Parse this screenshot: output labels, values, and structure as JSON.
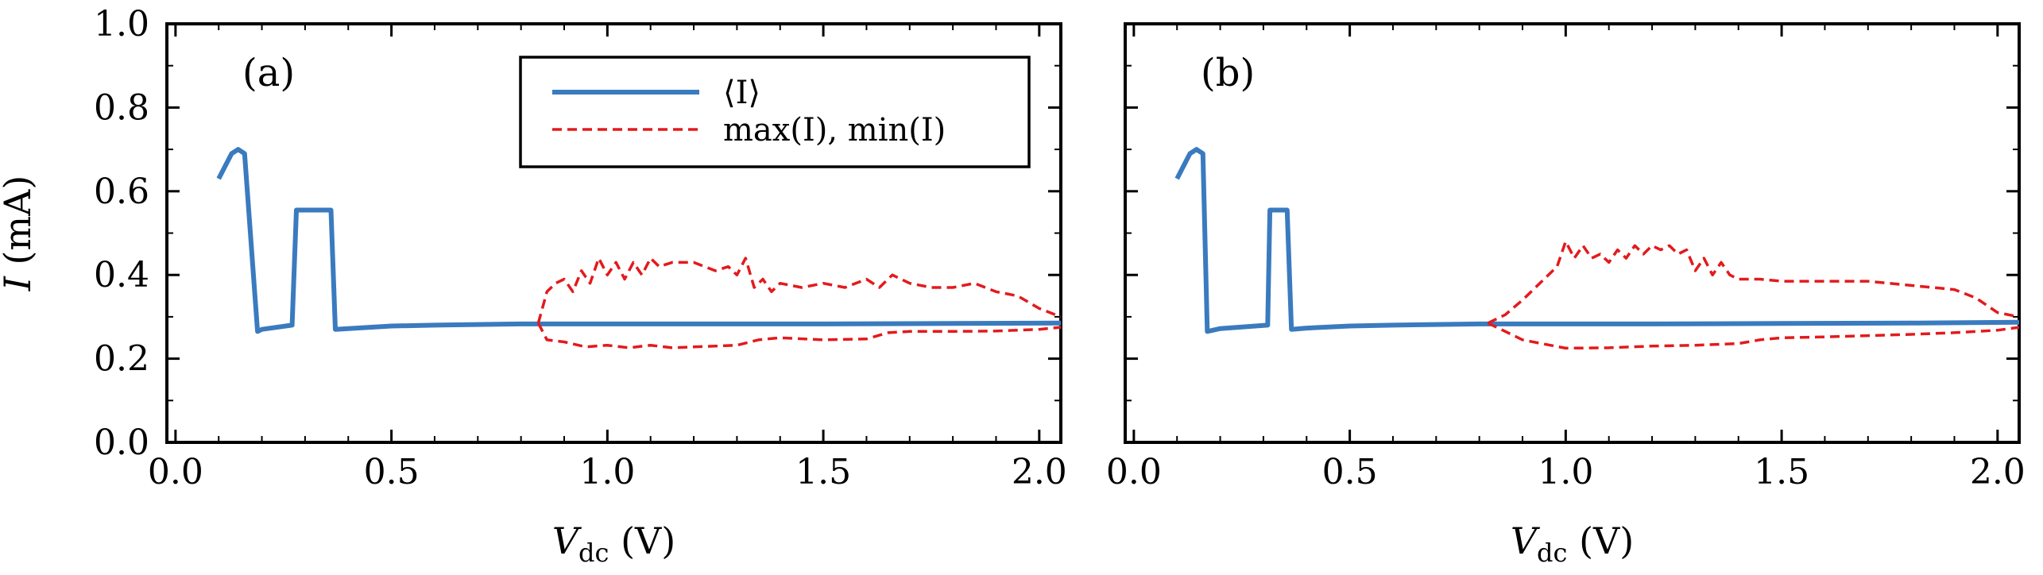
{
  "chart_data": [
    {
      "type": "line",
      "panel_label": "(a)",
      "xlabel": "V_dc (V)",
      "ylabel": "I (mA)",
      "xlim": [
        -0.02,
        2.05
      ],
      "ylim": [
        0.0,
        1.0
      ],
      "xticks": [
        "0.0",
        "0.5",
        "1.0",
        "1.5",
        "2.0"
      ],
      "yticks": [
        "0.0",
        "0.2",
        "0.4",
        "0.6",
        "0.8",
        "1.0"
      ],
      "legend": {
        "position": "top-center",
        "entries": [
          "⟨I⟩",
          "max(I), min(I)"
        ]
      },
      "series": [
        {
          "name": "⟨I⟩",
          "color": "#3a7bbf",
          "style": "solid",
          "x": [
            0.1,
            0.13,
            0.145,
            0.16,
            0.19,
            0.2,
            0.27,
            0.28,
            0.36,
            0.37,
            0.4,
            0.5,
            0.6,
            0.8,
            1.0,
            1.2,
            1.5,
            1.8,
            2.05
          ],
          "y": [
            0.63,
            0.69,
            0.7,
            0.69,
            0.265,
            0.27,
            0.28,
            0.555,
            0.555,
            0.27,
            0.272,
            0.278,
            0.28,
            0.283,
            0.283,
            0.283,
            0.283,
            0.284,
            0.285
          ]
        },
        {
          "name": "max(I)",
          "color": "#e31a1c",
          "style": "dashed",
          "x": [
            0.84,
            0.86,
            0.88,
            0.9,
            0.92,
            0.94,
            0.96,
            0.98,
            1.0,
            1.02,
            1.04,
            1.06,
            1.08,
            1.1,
            1.12,
            1.15,
            1.2,
            1.25,
            1.28,
            1.3,
            1.32,
            1.34,
            1.36,
            1.38,
            1.4,
            1.45,
            1.5,
            1.55,
            1.6,
            1.63,
            1.66,
            1.7,
            1.75,
            1.8,
            1.85,
            1.9,
            1.95,
            2.0,
            2.05
          ],
          "y": [
            0.285,
            0.36,
            0.38,
            0.39,
            0.36,
            0.41,
            0.38,
            0.44,
            0.4,
            0.43,
            0.39,
            0.43,
            0.4,
            0.44,
            0.42,
            0.43,
            0.43,
            0.41,
            0.42,
            0.4,
            0.44,
            0.37,
            0.39,
            0.36,
            0.38,
            0.37,
            0.38,
            0.37,
            0.39,
            0.37,
            0.4,
            0.38,
            0.37,
            0.37,
            0.38,
            0.36,
            0.35,
            0.32,
            0.3
          ]
        },
        {
          "name": "min(I)",
          "color": "#e31a1c",
          "style": "dashed",
          "x": [
            0.84,
            0.86,
            0.9,
            0.95,
            1.0,
            1.05,
            1.1,
            1.15,
            1.2,
            1.25,
            1.3,
            1.35,
            1.4,
            1.5,
            1.6,
            1.65,
            1.7,
            1.8,
            1.9,
            2.0,
            2.05
          ],
          "y": [
            0.285,
            0.245,
            0.24,
            0.228,
            0.232,
            0.226,
            0.232,
            0.226,
            0.228,
            0.23,
            0.232,
            0.245,
            0.25,
            0.245,
            0.247,
            0.262,
            0.265,
            0.265,
            0.266,
            0.27,
            0.275
          ]
        }
      ]
    },
    {
      "type": "line",
      "panel_label": "(b)",
      "xlabel": "V_dc (V)",
      "ylabel": "",
      "xlim": [
        -0.02,
        2.05
      ],
      "ylim": [
        0.0,
        1.0
      ],
      "xticks": [
        "0.0",
        "0.5",
        "1.0",
        "1.5",
        "2.0"
      ],
      "yticks": [],
      "series": [
        {
          "name": "⟨I⟩",
          "color": "#3a7bbf",
          "style": "solid",
          "x": [
            0.1,
            0.13,
            0.145,
            0.16,
            0.17,
            0.2,
            0.31,
            0.315,
            0.355,
            0.365,
            0.4,
            0.5,
            0.6,
            0.8,
            1.0,
            1.2,
            1.5,
            1.8,
            2.05
          ],
          "y": [
            0.63,
            0.69,
            0.7,
            0.69,
            0.265,
            0.272,
            0.28,
            0.555,
            0.555,
            0.27,
            0.273,
            0.278,
            0.28,
            0.283,
            0.283,
            0.283,
            0.284,
            0.285,
            0.287
          ]
        },
        {
          "name": "max(I)",
          "color": "#e31a1c",
          "style": "dashed",
          "x": [
            0.82,
            0.86,
            0.9,
            0.94,
            0.98,
            1.0,
            1.02,
            1.04,
            1.06,
            1.08,
            1.1,
            1.12,
            1.14,
            1.16,
            1.18,
            1.2,
            1.22,
            1.24,
            1.26,
            1.28,
            1.3,
            1.32,
            1.34,
            1.36,
            1.38,
            1.4,
            1.45,
            1.5,
            1.6,
            1.7,
            1.8,
            1.9,
            1.95,
            2.0,
            2.05
          ],
          "y": [
            0.285,
            0.305,
            0.34,
            0.38,
            0.42,
            0.48,
            0.44,
            0.47,
            0.44,
            0.45,
            0.43,
            0.46,
            0.44,
            0.47,
            0.45,
            0.47,
            0.46,
            0.47,
            0.45,
            0.46,
            0.41,
            0.44,
            0.4,
            0.43,
            0.4,
            0.39,
            0.39,
            0.385,
            0.385,
            0.385,
            0.375,
            0.365,
            0.345,
            0.31,
            0.3
          ]
        },
        {
          "name": "min(I)",
          "color": "#e31a1c",
          "style": "dashed",
          "x": [
            0.82,
            0.86,
            0.9,
            0.95,
            1.0,
            1.1,
            1.2,
            1.3,
            1.4,
            1.45,
            1.5,
            1.6,
            1.7,
            1.8,
            1.9,
            2.0,
            2.05
          ],
          "y": [
            0.285,
            0.265,
            0.245,
            0.235,
            0.225,
            0.226,
            0.23,
            0.232,
            0.236,
            0.245,
            0.25,
            0.252,
            0.255,
            0.258,
            0.262,
            0.268,
            0.275
          ]
        }
      ]
    }
  ]
}
